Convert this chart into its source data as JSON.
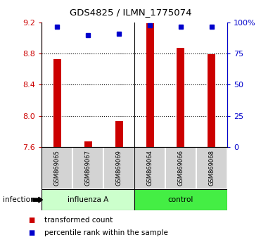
{
  "title": "GDS4825 / ILMN_1775074",
  "samples": [
    "GSM869065",
    "GSM869067",
    "GSM869069",
    "GSM869064",
    "GSM869066",
    "GSM869068"
  ],
  "groups": [
    "influenza A",
    "influenza A",
    "influenza A",
    "control",
    "control",
    "control"
  ],
  "group_labels": [
    "influenza A",
    "control"
  ],
  "bar_color": "#cc0000",
  "dot_color": "#0000cc",
  "transformed_counts": [
    8.73,
    7.67,
    7.93,
    9.19,
    8.87,
    8.79
  ],
  "percentile_ranks": [
    96.5,
    90.0,
    91.0,
    97.5,
    96.5,
    96.5
  ],
  "ylim_left": [
    7.6,
    9.2
  ],
  "ylim_right": [
    0,
    100
  ],
  "yticks_left": [
    7.6,
    8.0,
    8.4,
    8.8,
    9.2
  ],
  "yticks_right": [
    0,
    25,
    50,
    75,
    100
  ],
  "baseline": 7.6,
  "bar_width": 0.25,
  "legend_items": [
    "transformed count",
    "percentile rank within the sample"
  ],
  "legend_colors": [
    "#cc0000",
    "#0000cc"
  ],
  "figsize": [
    3.71,
    3.54
  ],
  "dpi": 100,
  "influenza_color": "#ccffcc",
  "control_color": "#44ee44",
  "sample_box_color": "#d3d3d3"
}
